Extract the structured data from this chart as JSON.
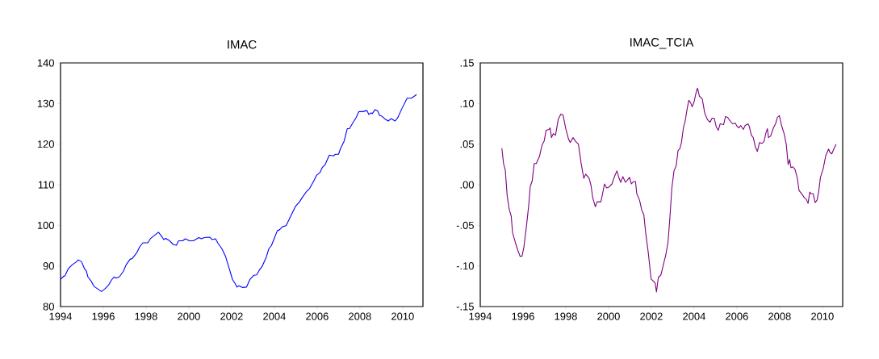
{
  "chart_data": [
    {
      "type": "line",
      "title": "IMAC",
      "color": "#0000ff",
      "x": [
        1994.0,
        1994.15,
        1994.2,
        1994.36,
        1994.55,
        1994.74,
        1994.83,
        1994.99,
        1995.12,
        1995.21,
        1995.28,
        1995.43,
        1995.56,
        1995.75,
        1995.91,
        1996.06,
        1996.25,
        1996.38,
        1996.5,
        1996.59,
        1996.75,
        1996.94,
        1997.07,
        1997.26,
        1997.35,
        1997.57,
        1997.7,
        1997.85,
        1998.08,
        1998.2,
        1998.39,
        1998.58,
        1998.7,
        1998.83,
        1998.92,
        1999.08,
        1999.27,
        1999.42,
        1999.52,
        1999.71,
        1999.84,
        2000.03,
        2000.21,
        2000.47,
        2000.59,
        2000.72,
        2000.97,
        2001.09,
        2001.25,
        2001.35,
        2001.54,
        2001.72,
        2001.91,
        2002.04,
        2002.16,
        2002.25,
        2002.35,
        2002.5,
        2002.7,
        2002.86,
        2003.04,
        2003.17,
        2003.3,
        2003.42,
        2003.61,
        2003.74,
        2003.86,
        2003.99,
        2004.14,
        2004.24,
        2004.39,
        2004.55,
        2004.74,
        2004.99,
        2005.18,
        2005.31,
        2005.5,
        2005.65,
        2005.85,
        2005.97,
        2006.13,
        2006.25,
        2006.38,
        2006.57,
        2006.75,
        2006.86,
        2007.0,
        2007.1,
        2007.26,
        2007.41,
        2007.51,
        2007.7,
        2007.82,
        2007.95,
        2008.14,
        2008.33,
        2008.42,
        2008.52,
        2008.58,
        2008.71,
        2008.83,
        2008.92,
        2009.02,
        2009.17,
        2009.33,
        2009.46,
        2009.65,
        2009.77,
        2009.96,
        2010.21,
        2010.4,
        2010.52,
        2010.65
      ],
      "values": [
        86.7,
        87.5,
        87.5,
        89.3,
        90.3,
        91.0,
        91.5,
        91.0,
        89.3,
        88.7,
        87.3,
        86.3,
        85.0,
        84.3,
        83.7,
        84.3,
        85.3,
        86.5,
        87.3,
        87.0,
        87.3,
        88.7,
        90.3,
        91.7,
        91.8,
        93.3,
        94.7,
        95.7,
        95.7,
        96.7,
        97.5,
        98.3,
        97.5,
        96.5,
        96.8,
        96.3,
        95.3,
        95.1,
        96.2,
        96.2,
        96.7,
        96.2,
        96.2,
        97.0,
        96.7,
        97.0,
        97.1,
        96.5,
        96.7,
        95.7,
        94.3,
        92.3,
        89.0,
        86.7,
        85.7,
        84.8,
        85.1,
        84.7,
        84.8,
        86.7,
        87.7,
        87.8,
        89.0,
        89.8,
        92.0,
        94.2,
        95.0,
        96.7,
        98.7,
        98.9,
        99.7,
        99.9,
        102.0,
        104.7,
        105.8,
        106.9,
        108.3,
        109.1,
        111.0,
        112.3,
        113.0,
        114.3,
        115.0,
        117.3,
        117.1,
        117.5,
        117.5,
        119.0,
        120.7,
        123.8,
        123.8,
        125.5,
        126.5,
        128.0,
        128.0,
        128.3,
        127.3,
        127.7,
        127.5,
        128.5,
        128.2,
        127.1,
        126.9,
        126.2,
        125.7,
        126.3,
        125.7,
        126.5,
        128.7,
        131.3,
        131.3,
        131.7,
        132.2
      ],
      "xlim": [
        1994,
        2010.95
      ],
      "ylim": [
        80,
        140
      ],
      "xticks": [
        1994,
        1996,
        1998,
        2000,
        2002,
        2004,
        2006,
        2008,
        2010
      ],
      "yticks": [
        80,
        90,
        100,
        110,
        120,
        130,
        140
      ]
    },
    {
      "type": "line",
      "title": "IMAC_TCIA",
      "color": "#800080",
      "x": [
        1995.01,
        1995.09,
        1995.17,
        1995.26,
        1995.36,
        1995.45,
        1995.51,
        1995.64,
        1995.76,
        1995.86,
        1995.95,
        1996.04,
        1996.16,
        1996.26,
        1996.34,
        1996.43,
        1996.52,
        1996.62,
        1996.77,
        1996.89,
        1996.99,
        1997.08,
        1997.21,
        1997.27,
        1997.33,
        1997.42,
        1997.52,
        1997.65,
        1997.77,
        1997.87,
        1998.0,
        1998.13,
        1998.21,
        1998.34,
        1998.47,
        1998.59,
        1998.72,
        1998.84,
        1998.93,
        1999.09,
        1999.18,
        1999.26,
        1999.38,
        1999.47,
        1999.64,
        1999.72,
        1999.81,
        1999.91,
        2000.01,
        2000.16,
        2000.26,
        2000.39,
        2000.48,
        2000.57,
        2000.67,
        2000.79,
        2000.98,
        2001.07,
        2001.17,
        2001.26,
        2001.32,
        2001.45,
        2001.55,
        2001.65,
        2001.74,
        2001.86,
        2001.99,
        2002.11,
        2002.18,
        2002.24,
        2002.33,
        2002.45,
        2002.55,
        2002.68,
        2002.78,
        2002.87,
        2002.96,
        2003.06,
        2003.16,
        2003.25,
        2003.33,
        2003.41,
        2003.5,
        2003.58,
        2003.66,
        2003.75,
        2003.84,
        2003.91,
        2004.0,
        2004.09,
        2004.16,
        2004.25,
        2004.38,
        2004.5,
        2004.63,
        2004.75,
        2004.84,
        2004.94,
        2005.04,
        2005.13,
        2005.22,
        2005.38,
        2005.47,
        2005.57,
        2005.67,
        2005.8,
        2005.92,
        2006.01,
        2006.1,
        2006.18,
        2006.3,
        2006.39,
        2006.52,
        2006.58,
        2006.68,
        2006.77,
        2006.86,
        2006.96,
        2007.06,
        2007.18,
        2007.27,
        2007.36,
        2007.43,
        2007.48,
        2007.58,
        2007.71,
        2007.81,
        2007.9,
        2007.99,
        2008.09,
        2008.21,
        2008.31,
        2008.4,
        2008.47,
        2008.53,
        2008.62,
        2008.72,
        2008.82,
        2008.91,
        2009.03,
        2009.16,
        2009.25,
        2009.33,
        2009.41,
        2009.47,
        2009.57,
        2009.66,
        2009.75,
        2009.82,
        2009.91,
        2010.04,
        2010.16,
        2010.29,
        2010.35,
        2010.44,
        2010.52,
        2010.64
      ],
      "values": [
        0.045,
        0.026,
        0.018,
        -0.014,
        -0.031,
        -0.039,
        -0.059,
        -0.071,
        -0.081,
        -0.088,
        -0.088,
        -0.077,
        -0.051,
        -0.027,
        -0.002,
        0.005,
        0.026,
        0.026,
        0.035,
        0.049,
        0.054,
        0.067,
        0.068,
        0.07,
        0.058,
        0.063,
        0.061,
        0.081,
        0.087,
        0.086,
        0.069,
        0.056,
        0.052,
        0.058,
        0.053,
        0.05,
        0.026,
        0.008,
        0.013,
        0.008,
        -0.001,
        -0.016,
        -0.027,
        -0.021,
        -0.021,
        -0.011,
        0.001,
        -0.004,
        -0.003,
        0.001,
        0.009,
        0.017,
        0.009,
        0.003,
        0.01,
        0.003,
        0.009,
        0.001,
        0.004,
        0.004,
        -0.011,
        -0.019,
        -0.031,
        -0.037,
        -0.06,
        -0.084,
        -0.116,
        -0.119,
        -0.121,
        -0.132,
        -0.114,
        -0.111,
        -0.1,
        -0.086,
        -0.071,
        -0.04,
        -0.004,
        0.017,
        0.023,
        0.042,
        0.044,
        0.052,
        0.07,
        0.078,
        0.091,
        0.104,
        0.101,
        0.096,
        0.102,
        0.113,
        0.119,
        0.109,
        0.106,
        0.088,
        0.08,
        0.077,
        0.082,
        0.082,
        0.071,
        0.067,
        0.075,
        0.074,
        0.084,
        0.083,
        0.079,
        0.075,
        0.076,
        0.072,
        0.07,
        0.073,
        0.068,
        0.073,
        0.075,
        0.072,
        0.061,
        0.058,
        0.047,
        0.041,
        0.052,
        0.051,
        0.053,
        0.064,
        0.069,
        0.058,
        0.06,
        0.07,
        0.075,
        0.083,
        0.085,
        0.073,
        0.063,
        0.05,
        0.025,
        0.031,
        0.021,
        0.022,
        0.019,
        0.009,
        -0.007,
        -0.011,
        -0.016,
        -0.018,
        -0.023,
        -0.009,
        -0.011,
        -0.011,
        -0.022,
        -0.019,
        -0.01,
        0.009,
        0.02,
        0.036,
        0.044,
        0.04,
        0.038,
        0.043,
        0.05
      ],
      "xlim": [
        1994,
        2010.95
      ],
      "ylim": [
        -0.15,
        0.15
      ],
      "xticks": [
        1994,
        1996,
        1998,
        2000,
        2002,
        2004,
        2006,
        2008,
        2010
      ],
      "yticks": [
        {
          "value": -0.15,
          "label": "-.15"
        },
        {
          "value": -0.1,
          "label": "-.10"
        },
        {
          "value": -0.05,
          "label": "-.05"
        },
        {
          "value": 0,
          "label": ".00"
        },
        {
          "value": 0.05,
          "label": ".05"
        },
        {
          "value": 0.1,
          "label": ".10"
        },
        {
          "value": 0.15,
          "label": ".15"
        }
      ]
    }
  ]
}
